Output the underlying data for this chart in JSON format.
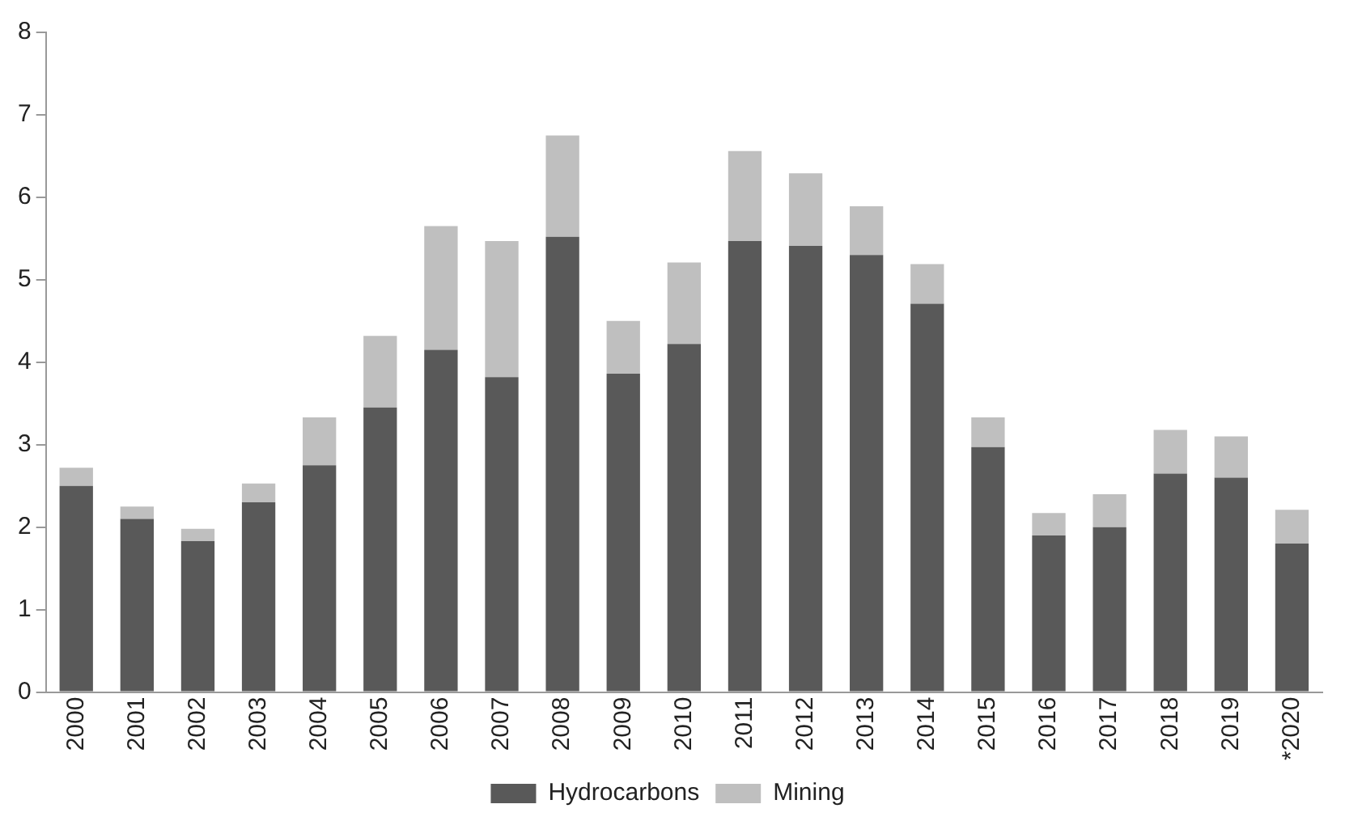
{
  "chart_data": {
    "type": "bar",
    "stacked": true,
    "categories": [
      "2000",
      "2001",
      "2002",
      "2003",
      "2004",
      "2005",
      "2006",
      "2007",
      "2008",
      "2009",
      "2010",
      "2011",
      "2012",
      "2013",
      "2014",
      "2015",
      "2016",
      "2017",
      "2018",
      "2019",
      "*2020"
    ],
    "series": [
      {
        "name": "Hydrocarbons",
        "color": "#595959",
        "values": [
          2.5,
          2.1,
          1.83,
          2.3,
          2.75,
          3.45,
          4.15,
          3.82,
          5.52,
          3.86,
          4.22,
          5.47,
          5.41,
          5.3,
          4.71,
          2.97,
          1.9,
          2.0,
          2.65,
          2.6,
          1.8
        ]
      },
      {
        "name": "Mining",
        "color": "#bfbfbf",
        "values": [
          0.22,
          0.15,
          0.15,
          0.23,
          0.58,
          0.87,
          1.5,
          1.65,
          1.23,
          0.64,
          0.99,
          1.09,
          0.88,
          0.59,
          0.48,
          0.36,
          0.27,
          0.4,
          0.53,
          0.5,
          0.41
        ]
      }
    ],
    "ylim": [
      0,
      8
    ],
    "yticks": [
      0,
      1,
      2,
      3,
      4,
      5,
      6,
      7,
      8
    ],
    "grid": false,
    "legend": "bottom"
  }
}
